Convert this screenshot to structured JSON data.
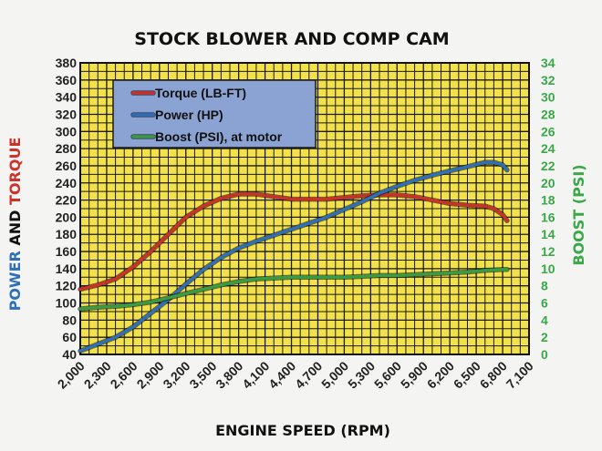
{
  "chart_data": {
    "type": "line",
    "title": "STOCK BLOWER AND COMP CAM",
    "xlabel": "ENGINE SPEED (RPM)",
    "ylabel_left_parts": [
      {
        "text": "POWER",
        "color": "#2f6fb8"
      },
      {
        "text": " AND ",
        "color": "#111111"
      },
      {
        "text": "TORQUE",
        "color": "#d0322b"
      }
    ],
    "ylabel_right": "BOOST (PSI)",
    "xlim": [
      2000,
      7100
    ],
    "ylim_left": [
      40,
      380
    ],
    "ylim_right": [
      0,
      34
    ],
    "x_ticks": [
      2000,
      2300,
      2600,
      2900,
      3200,
      3500,
      3800,
      4100,
      4400,
      4700,
      5000,
      5300,
      5600,
      5900,
      6200,
      6500,
      6800,
      7100
    ],
    "x_tick_labels": [
      "2,000",
      "2,300",
      "2,600",
      "2,900",
      "3,200",
      "3,500",
      "3,800",
      "4,100",
      "4,400",
      "4,700",
      "5,000",
      "5,300",
      "5,600",
      "5,900",
      "6,200",
      "6,500",
      "6,800",
      "7,100"
    ],
    "y_left_ticks": [
      40,
      60,
      80,
      100,
      120,
      140,
      160,
      180,
      200,
      220,
      240,
      260,
      280,
      300,
      320,
      340,
      360,
      380
    ],
    "y_right_ticks": [
      0,
      2,
      4,
      6,
      8,
      10,
      12,
      14,
      16,
      18,
      20,
      22,
      24,
      26,
      28,
      30,
      32,
      34
    ],
    "grid": true,
    "background_color": "#f2e14a",
    "legend_position": "top-left",
    "series": [
      {
        "name": "Torque (LB-FT)",
        "axis": "left",
        "color": "#c8322b",
        "x": [
          2000,
          2200,
          2400,
          2600,
          2800,
          3000,
          3200,
          3400,
          3600,
          3800,
          4000,
          4200,
          4400,
          4600,
          4800,
          5000,
          5200,
          5400,
          5600,
          5800,
          6000,
          6200,
          6400,
          6600,
          6700,
          6800,
          6850
        ],
        "y": [
          116,
          121,
          128,
          142,
          160,
          180,
          200,
          213,
          222,
          227,
          227,
          224,
          221,
          221,
          221,
          223,
          225,
          226,
          226,
          224,
          220,
          216,
          214,
          213,
          210,
          203,
          196
        ]
      },
      {
        "name": "Power (HP)",
        "axis": "left",
        "color": "#2f6fb8",
        "x": [
          2000,
          2200,
          2400,
          2600,
          2800,
          3000,
          3200,
          3400,
          3600,
          3800,
          4000,
          4200,
          4400,
          4600,
          4800,
          5000,
          5200,
          5400,
          5600,
          5800,
          6000,
          6200,
          6400,
          6600,
          6700,
          6800,
          6850
        ],
        "y": [
          44,
          52,
          60,
          72,
          88,
          104,
          122,
          139,
          153,
          164,
          172,
          179,
          186,
          193,
          200,
          209,
          218,
          228,
          236,
          243,
          249,
          254,
          259,
          264,
          264,
          261,
          255
        ]
      },
      {
        "name": "Boost (PSI), at motor",
        "axis": "right",
        "color": "#3a9a45",
        "x": [
          2000,
          2200,
          2400,
          2600,
          2800,
          3000,
          3200,
          3400,
          3600,
          3800,
          4000,
          4200,
          4400,
          4600,
          4800,
          5000,
          5200,
          5400,
          5600,
          5800,
          6000,
          6200,
          6400,
          6600,
          6800,
          6850
        ],
        "y": [
          5.3,
          5.5,
          5.6,
          5.8,
          6.1,
          6.6,
          7.1,
          7.6,
          8.1,
          8.5,
          8.8,
          8.9,
          9.0,
          9.0,
          9.0,
          9.0,
          9.1,
          9.2,
          9.2,
          9.3,
          9.4,
          9.5,
          9.6,
          9.8,
          9.9,
          9.9
        ]
      }
    ]
  }
}
